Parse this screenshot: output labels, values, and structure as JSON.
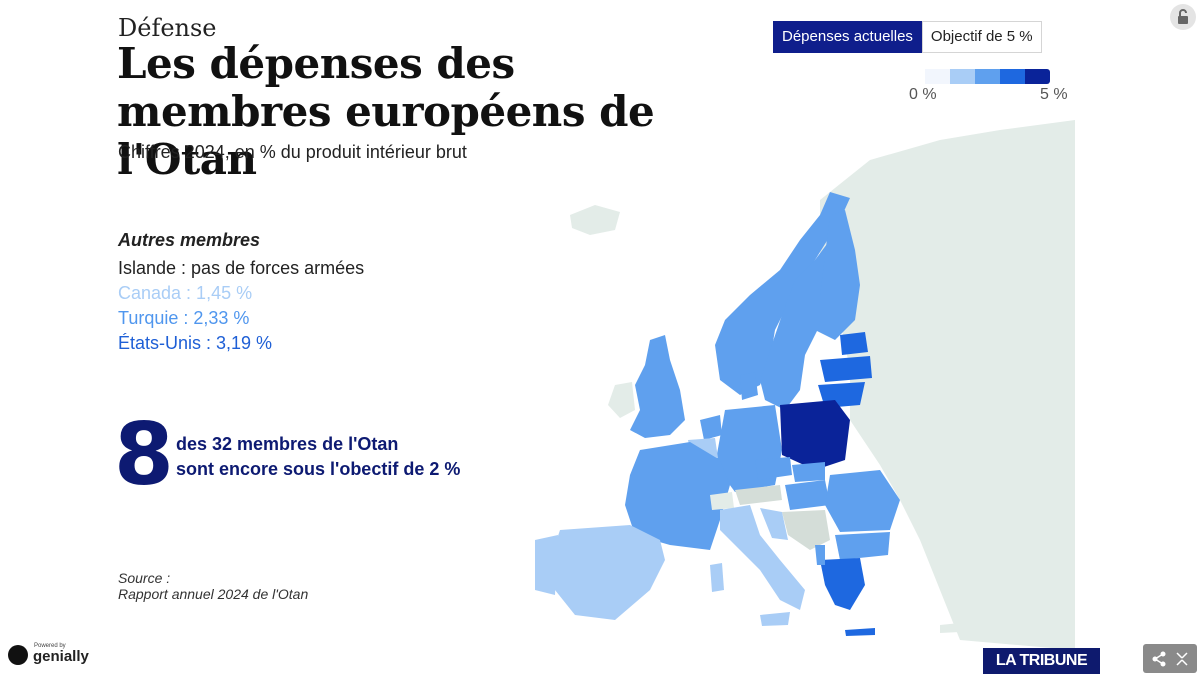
{
  "header": {
    "kicker": "Défense",
    "title": "Les dépenses des membres européens de l'Otan",
    "subtitle": "Chiffres 2024, en % du produit intérieur brut"
  },
  "others": {
    "heading": "Autres membres",
    "items": [
      {
        "text": "Islande : pas de forces armées",
        "color": "#222222"
      },
      {
        "text": "Canada : 1,45 %",
        "color": "#a9cdf6"
      },
      {
        "text": "Turquie : 2,33 %",
        "color": "#4f96ee"
      },
      {
        "text": "États-Unis : 3,19 %",
        "color": "#1e5fd6"
      }
    ]
  },
  "highlight": {
    "number": "8",
    "text_line1": "des 32 membres de l'Otan",
    "text_line2": "sont encore sous l'obectif de 2 %"
  },
  "source": {
    "line1": "Source :",
    "line2": "Rapport annuel 2024 de l'Otan"
  },
  "tabs": [
    {
      "label": "Dépenses actuelles",
      "active": true
    },
    {
      "label": "Objectif de 5 %",
      "active": false
    }
  ],
  "legend": {
    "min_label": "0 %",
    "max_label": "5 %",
    "colors": [
      "#f2f6fd",
      "#a9cdf6",
      "#5fa0ee",
      "#1e68e0",
      "#0a2399"
    ]
  },
  "branding": {
    "powered_by": "Powered by",
    "genially": "genially",
    "publisher": "LA TRIBUNE"
  },
  "map": {
    "colors": {
      "non_member": "#e3ece8",
      "bin1": "#a9cdf6",
      "bin2": "#5fa0ee",
      "bin3": "#1e68e0",
      "bin4": "#0a2399",
      "gray": "#d4ddd8"
    }
  }
}
